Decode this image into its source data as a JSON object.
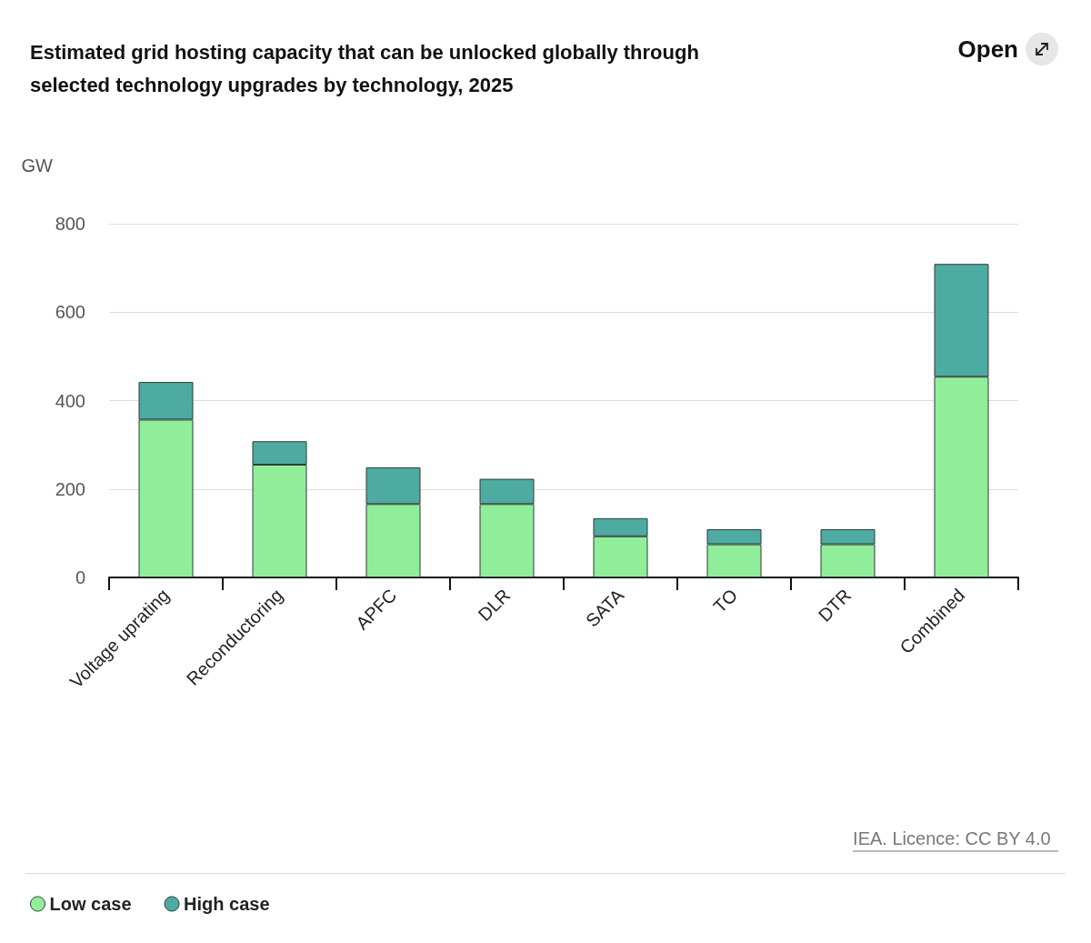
{
  "chart_data": {
    "type": "bar",
    "title": "Estimated grid hosting capacity that can be unlocked globally through\nselected technology upgrades by technology, 2025",
    "ylabel": "GW",
    "categories": [
      "Voltage uprating",
      "Reconductoring",
      "APFC",
      "DLR",
      "SATA",
      "TO",
      "DTR",
      "Combined"
    ],
    "series": [
      {
        "name": "Low case",
        "color": "#90ee9a",
        "values": [
          357,
          255,
          166,
          166,
          93,
          75,
          75,
          454
        ]
      },
      {
        "name": "High case",
        "color": "#4eaba1",
        "values": [
          85,
          53,
          83,
          57,
          41,
          34,
          34,
          255
        ]
      }
    ],
    "stacked": true,
    "ylim": [
      0,
      800
    ],
    "yticks": [
      0,
      200,
      400,
      600,
      800
    ],
    "grid": "y",
    "legend": "bottom left",
    "annotations": [
      "IEA. Licence: CC BY 4.0",
      "Open"
    ]
  }
}
